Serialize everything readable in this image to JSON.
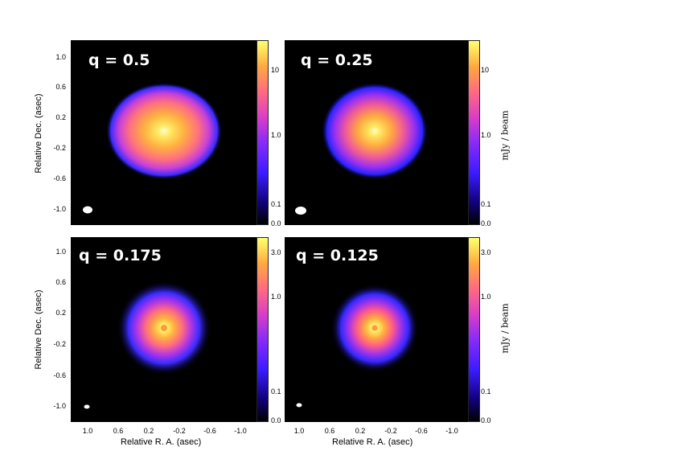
{
  "chart_data": [
    {
      "type": "heatmap",
      "title": "q = 0.5",
      "ylabel": "Relative Dec. (asec)",
      "xlabel": "",
      "yticks": [
        "1.0",
        "0.6",
        "0.2",
        "-0.2",
        "-0.6",
        "-1.0"
      ],
      "xticks": [],
      "colorbar_ticks": [
        "10",
        "1.0",
        "0.1",
        "0.0"
      ],
      "colorbar_label": "",
      "colormap": "plasma-like (black-blue-magenta-orange-yellow)",
      "disk": {
        "peak": "center",
        "extent_asec": 0.6
      }
    },
    {
      "type": "heatmap",
      "title": "q = 0.25",
      "ylabel": "",
      "xlabel": "",
      "yticks": [],
      "xticks": [],
      "colorbar_ticks": [
        "10",
        "1.0",
        "0.1",
        "0.0"
      ],
      "colorbar_label": "mJy / beam",
      "colormap": "plasma-like (black-blue-magenta-orange-yellow)",
      "disk": {
        "peak": "center",
        "extent_asec": 0.55
      }
    },
    {
      "type": "heatmap",
      "title": "q = 0.175",
      "ylabel": "Relative Dec. (asec)",
      "xlabel": "Relative R. A. (asec)",
      "yticks": [
        "1.0",
        "0.6",
        "0.2",
        "-0.2",
        "-0.6",
        "-1.0"
      ],
      "xticks": [
        "1.0",
        "0.6",
        "0.2",
        "-0.2",
        "-0.6",
        "-1.0"
      ],
      "colorbar_ticks": [
        "3.0",
        "1.0",
        "0.1",
        "0.0"
      ],
      "colorbar_label": "",
      "colormap": "plasma-like (black-blue-magenta-orange-yellow)",
      "disk": {
        "peak": "ring",
        "extent_asec": 0.35
      }
    },
    {
      "type": "heatmap",
      "title": "q = 0.125",
      "ylabel": "",
      "xlabel": "Relative R. A. (asec)",
      "yticks": [],
      "xticks": [
        "1.0",
        "0.6",
        "0.2",
        "-0.2",
        "-0.6",
        "-1.0"
      ],
      "colorbar_ticks": [
        "3.0",
        "1.0",
        "0.1",
        "0.0"
      ],
      "colorbar_label": "mJy / beam",
      "colormap": "plasma-like (black-blue-magenta-orange-yellow)",
      "disk": {
        "peak": "ring",
        "extent_asec": 0.32
      }
    }
  ]
}
